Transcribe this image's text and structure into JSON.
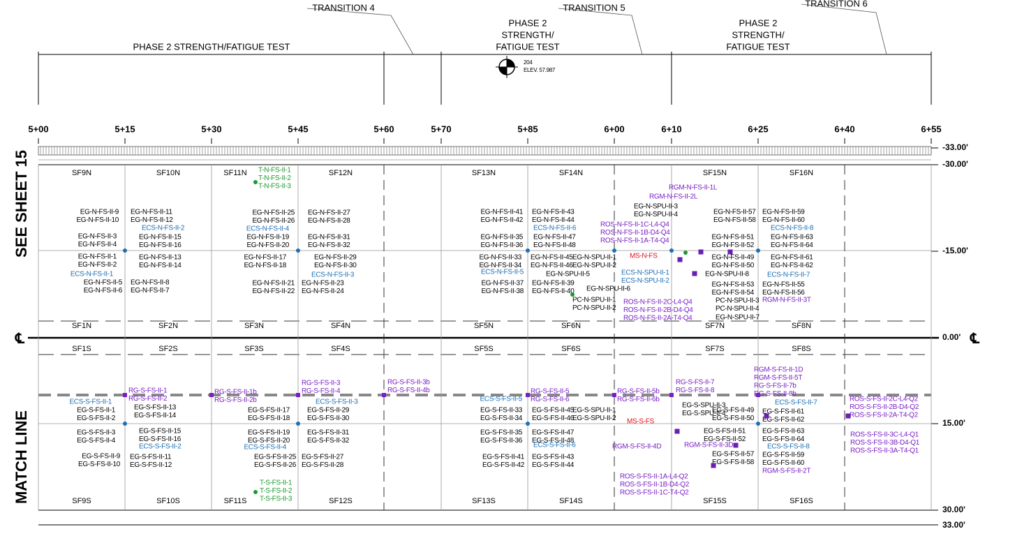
{
  "header": {
    "transitions": [
      "TRANSITION 4",
      "TRANSITION 5",
      "TRANSITION 6"
    ],
    "phases": [
      [
        "PHASE 2 STRENGTH/FATIGUE TEST"
      ],
      [
        "PHASE 2",
        "STRENGTH/",
        "FATIGUE TEST"
      ],
      [
        "PHASE 2",
        "STRENGTH/",
        "FATIGUE TEST"
      ]
    ],
    "benchmark": {
      "number": "204",
      "elevation": "ELEV. 57.987"
    }
  },
  "stations": [
    "5+00",
    "5+15",
    "5+30",
    "5+45",
    "5+60",
    "5+70",
    "5+85",
    "6+00",
    "6+10",
    "6+25",
    "6+40",
    "6+55"
  ],
  "offsets": [
    "-33.00'",
    "-30.00'",
    "-15.00'",
    "0.00'",
    "15.00'",
    "30.00'",
    "33.00'"
  ],
  "centerline_symbol": "℄",
  "side_labels": [
    "SEE SHEET 15",
    "MATCH LINE"
  ],
  "slabs": {
    "north_top": [
      "SF9N",
      "SF10N",
      "SF11N",
      "SF12N",
      "SF13N",
      "SF14N",
      "SF15N",
      "SF16N"
    ],
    "north_bottom": [
      "SF1N",
      "SF2N",
      "SF3N",
      "SF4N",
      "SF5N",
      "SF6N",
      "SF7N",
      "SF8N"
    ],
    "south_top": [
      "SF1S",
      "SF2S",
      "SF3S",
      "SF4S",
      "SF5S",
      "SF6S",
      "SF7S",
      "SF8S"
    ],
    "south_bottom": [
      "SF9S",
      "SF10S",
      "SF11S",
      "SF12S",
      "SF13S",
      "SF14S",
      "SF15S",
      "SF16S"
    ]
  },
  "labels": {
    "black": [
      [
        "EG-N-FS-II-9",
        "EG-N-FS-II-10"
      ],
      [
        "EG-N-FS-II-3",
        "EG-N-FS-II-4"
      ],
      [
        "EG-N-FS-II-1",
        "EG-N-FS-II-2"
      ],
      [
        "EG-N-FS-II-5",
        "EG-N-FS-II-6"
      ],
      [
        "EG-N-FS-II-11",
        "EG-N-FS-II-12"
      ],
      [
        "EG-N-FS-II-15",
        "EG-N-FS-II-16"
      ],
      [
        "EG-N-FS-II-13",
        "EG-N-FS-II-14"
      ],
      [
        "EG-N-FS-II-8",
        "EG-N-FS-II-7"
      ],
      [
        "EG-N-FS-II-25",
        "EG-N-FS-II-26"
      ],
      [
        "EG-N-FS-II-19",
        "EG-N-FS-II-20"
      ],
      [
        "EG-N-FS-II-17",
        "EG-N-FS-II-18"
      ],
      [
        "EG-N-FS-II-21",
        "EG-N-FS-II-22"
      ],
      [
        "EG-N-FS-II-27",
        "EG-N-FS-II-28"
      ],
      [
        "EG-N-FS-II-31",
        "EG-N-FS-II-32"
      ],
      [
        "EG-N-FS-II-29",
        "EG-N-FS-II-30"
      ],
      [
        "EG-N-FS-II-23",
        "EG-N-FS-II-24"
      ],
      [
        "EG-N-FS-II-41",
        "EG-N-FS-II-42"
      ],
      [
        "EG-N-FS-II-35",
        "EG-N-FS-II-36"
      ],
      [
        "EG-N-FS-II-33",
        "EG-N-FS-II-34"
      ],
      [
        "EG-N-FS-II-37",
        "EG-N-FS-II-38"
      ],
      [
        "EG-N-FS-II-43",
        "EG-N-FS-II-44"
      ],
      [
        "EG-N-FS-II-47",
        "EG-N-FS-II-48"
      ],
      [
        "EG-N-FS-II-45",
        "EG-N-FS-II-46"
      ],
      [
        "EG-N-FS-II-39",
        "EG-N-FS-II-40"
      ],
      [
        "EG-N-SPU-II-1",
        "EG-N-SPU-II-2"
      ],
      [
        "EG-N-SPU-II-5"
      ],
      [
        "EG-N-SPU-II-6"
      ],
      [
        "PC-N-SPU-II-1",
        "PC-N-SPU-II-2"
      ],
      [
        "EG-N-SPU-II-3",
        "EG-N-SPU-II-4"
      ],
      [
        "EG-N-FS-II-57",
        "EG-N-FS-II-58"
      ],
      [
        "EG-N-FS-II-51",
        "EG-N-FS-II-52"
      ],
      [
        "EG-N-FS-II-49",
        "EG-N-FS-II-50"
      ],
      [
        "EG-N-SPU-II-8"
      ],
      [
        "EG-N-FS-II-53",
        "EG-N-FS-II-54"
      ],
      [
        "PC-N-SPU-II-3",
        "PC-N-SPU-II-4"
      ],
      [
        "EG-N-SPU-II-7"
      ],
      [
        "EG-N-FS-II-59",
        "EG-N-FS-II-60"
      ],
      [
        "EG-N-FS-II-63",
        "EG-N-FS-II-64"
      ],
      [
        "EG-N-FS-II-61",
        "EG-N-FS-II-62"
      ],
      [
        "EG-N-FS-II-55",
        "EG-N-FS-II-56"
      ],
      [
        "EG-S-FS-II-1",
        "EG-S-FS-II-2"
      ],
      [
        "EG-S-FS-II-3",
        "EG-S-FS-II-4"
      ],
      [
        "EG-S-FS-II-9",
        "EG-S-FS-II-10"
      ],
      [
        "EG-S-FS-II-13",
        "EG-S-FS-II-14"
      ],
      [
        "EG-S-FS-II-15",
        "EG-S-FS-II-16"
      ],
      [
        "EG-S-FS-II-11",
        "EG-S-FS-II-12"
      ],
      [
        "EG-S-FS-II-17",
        "EG-S-FS-II-18"
      ],
      [
        "EG-S-FS-II-19",
        "EG-S-FS-II-20"
      ],
      [
        "EG-S-FS-II-25",
        "EG-S-FS-II-26"
      ],
      [
        "EG-S-FS-II-29",
        "EG-S-FS-II-30"
      ],
      [
        "EG-S-FS-II-31",
        "EG-S-FS-II-32"
      ],
      [
        "EG-S-FS-II-27",
        "EG-S-FS-II-28"
      ],
      [
        "EG-S-FS-II-33",
        "EG-S-FS-II-34"
      ],
      [
        "EG-S-FS-II-35",
        "EG-S-FS-II-36"
      ],
      [
        "EG-S-FS-II-41",
        "EG-S-FS-II-42"
      ],
      [
        "EG-S-FS-II-45",
        "EG-S-FS-II-46"
      ],
      [
        "EG-S-FS-II-47",
        "EG-S-FS-II-48"
      ],
      [
        "EG-S-FS-II-43",
        "EG-S-FS-II-44"
      ],
      [
        "EG-S-SPU-II-1",
        "EG-S-SPU-II-2"
      ],
      [
        "EG-S-SPU-II-3",
        "EG-S-SPU-II-4"
      ],
      [
        "EG-S-FS-II-49",
        "EG-S-FS-II-50"
      ],
      [
        "EG-S-FS-II-51",
        "EG-S-FS-II-52"
      ],
      [
        "EG-S-FS-II-57",
        "EG-S-FS-II-58"
      ],
      [
        "EG-S-FS-II-61",
        "EG-S-FS-II-62"
      ],
      [
        "EG-S-FS-II-63",
        "EG-S-FS-II-64"
      ],
      [
        "EG-S-FS-II-59",
        "EG-S-FS-II-60"
      ]
    ],
    "blue": [
      [
        "ECS-N-FS-II-1"
      ],
      [
        "ECS-N-FS-II-2"
      ],
      [
        "ECS-N-FS-II-4"
      ],
      [
        "ECS-N-FS-II-3"
      ],
      [
        "ECS-N-FS-II-5"
      ],
      [
        "ECS-N-FS-II-6"
      ],
      [
        "ECS-N-SPU-II-1",
        "ECS-N-SPU-II-2"
      ],
      [
        "ECS-N-FS-II-8"
      ],
      [
        "ECS-N-FS-II-7"
      ],
      [
        "ECS-S-FS-II-1"
      ],
      [
        "ECS-S-FS-II-2"
      ],
      [
        "ECS-S-FS-II-4"
      ],
      [
        "ECS-S-FS-II-3"
      ],
      [
        "ECS-S-FS-II-5"
      ],
      [
        "ECS-S-FS-II-6"
      ],
      [
        "ECS-S-FS-II-7"
      ],
      [
        "ECS-S-FS-II-8"
      ]
    ],
    "green": [
      [
        "T-N-FS-II-1",
        "T-N-FS-II-2",
        "T-N-FS-II-3"
      ],
      [
        "T-S-FS-II-1",
        "T-S-FS-II-2",
        "T-S-FS-II-3"
      ]
    ],
    "purple": [
      [
        "RGM-N-FS-II-1L"
      ],
      [
        "RGM-N-FS-II-2L"
      ],
      [
        "ROS-N-FS-II-1C-L4-Q4",
        "ROS-N-FS-II-1B-D4-Q4",
        "ROS-N-FS-II-1A-T4-Q4"
      ],
      [
        "ROS-N-FS-II-2C-L4-Q4",
        "ROS-N-FS-II-2B-D4-Q4",
        "ROS-N-FS-II-2A-T4-Q4"
      ],
      [
        "RGM-N-FS-II-3T"
      ],
      [
        "RG-S-FS-II-1",
        "RG-S-FS-II-2"
      ],
      [
        "RG-S-FS-II-1b",
        "RG-S-FS-II-2b"
      ],
      [
        "RG-S-FS-II-3",
        "RG-S-FS-II-4"
      ],
      [
        "RG-S-FS-II-3b",
        "RG-S-FS-II-4b"
      ],
      [
        "RG-S-FS-II-5",
        "RG-S-FS-II-6"
      ],
      [
        "RG-S-FS-II-5b",
        "RG-S-FS-II-6b"
      ],
      [
        "RG-S-FS-II-7",
        "RG-S-FS-II-8"
      ],
      [
        "RGM-S-FS-II-1D",
        "RGM-S-FS-II-5T",
        "RG-S-FS-II-7b",
        "RG-S-FS-II-8b"
      ],
      [
        "RGM-S-FS-II-4D"
      ],
      [
        "RGM-S-FS-II-3D"
      ],
      [
        "ROS-S-FS-II-1A-L4-Q2",
        "ROS-S-FS-II-1B-D4-Q2",
        "ROS-S-FS-II-1C-T4-Q2"
      ],
      [
        "RGM-S-FS-II-2T"
      ],
      [
        "ROS-S-FS-II-2C-L4-Q2",
        "ROS-S-FS-II-2B-D4-Q2",
        "ROS-S-FS-II-2A-T4-Q2"
      ],
      [
        "ROS-S-FS-II-3C-L4-Q1",
        "ROS-S-FS-II-3B-D4-Q1",
        "ROS-S-FS-II-3A-T4-Q1"
      ]
    ],
    "red": [
      [
        "MS-N-FS"
      ],
      [
        "MS-S-FS"
      ]
    ]
  }
}
